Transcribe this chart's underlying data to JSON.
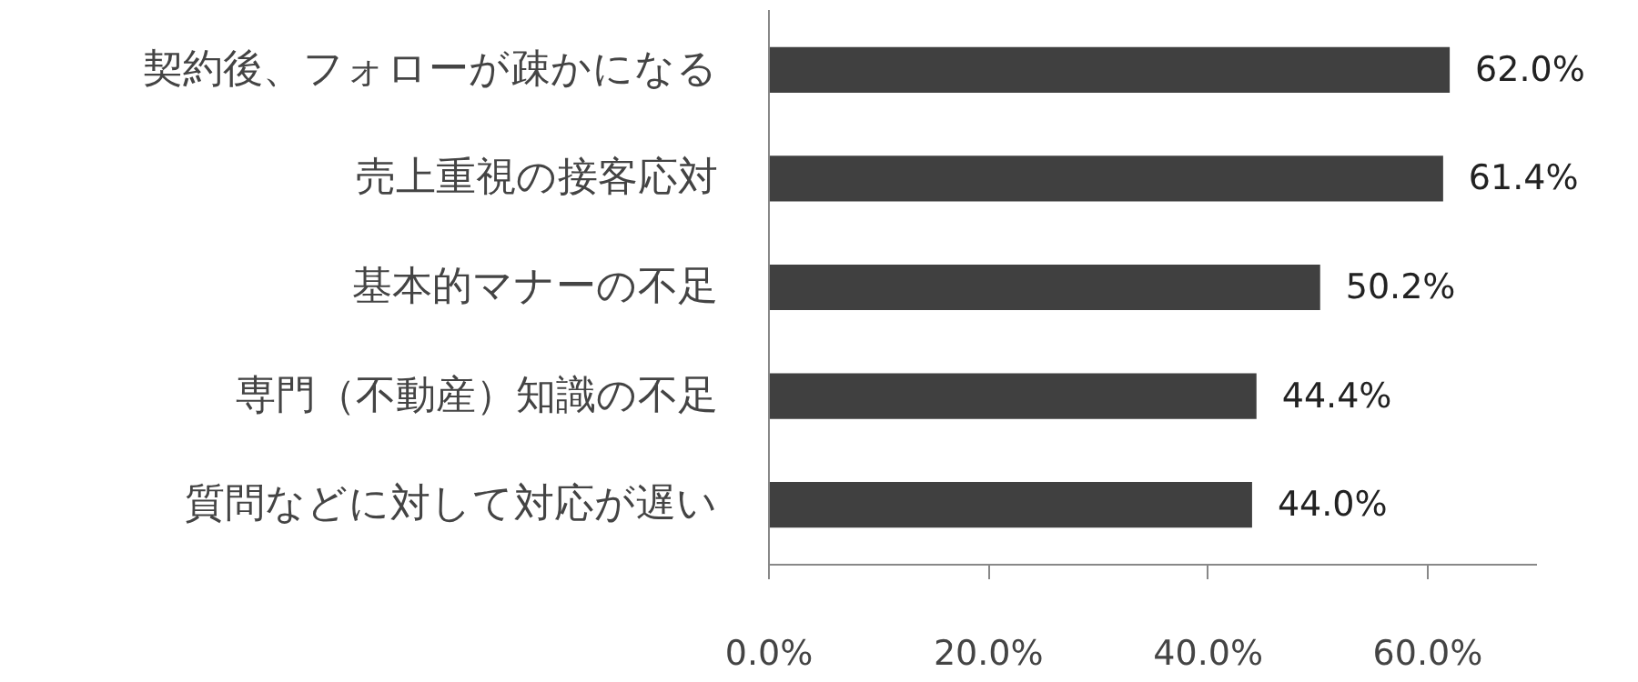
{
  "chart_data": {
    "type": "bar",
    "orientation": "horizontal",
    "categories": [
      "契約後、フォローが疎かになる",
      "売上重視の接客応対",
      "基本的マナーの不足",
      "専門（不動産）知識の不足",
      "質問などに対して対応が遅い"
    ],
    "values": [
      62.0,
      61.4,
      50.2,
      44.4,
      44.0
    ],
    "value_labels": [
      "62.0%",
      "61.4%",
      "50.2%",
      "44.4%",
      "44.0%"
    ],
    "color": "#404040",
    "xlim": [
      0,
      70
    ],
    "xticks": [
      {
        "value": 0,
        "label": "0.0%"
      },
      {
        "value": 20,
        "label": "20.0%"
      },
      {
        "value": 40,
        "label": "40.0%"
      },
      {
        "value": 60,
        "label": "60.0%"
      }
    ],
    "grid": false
  }
}
